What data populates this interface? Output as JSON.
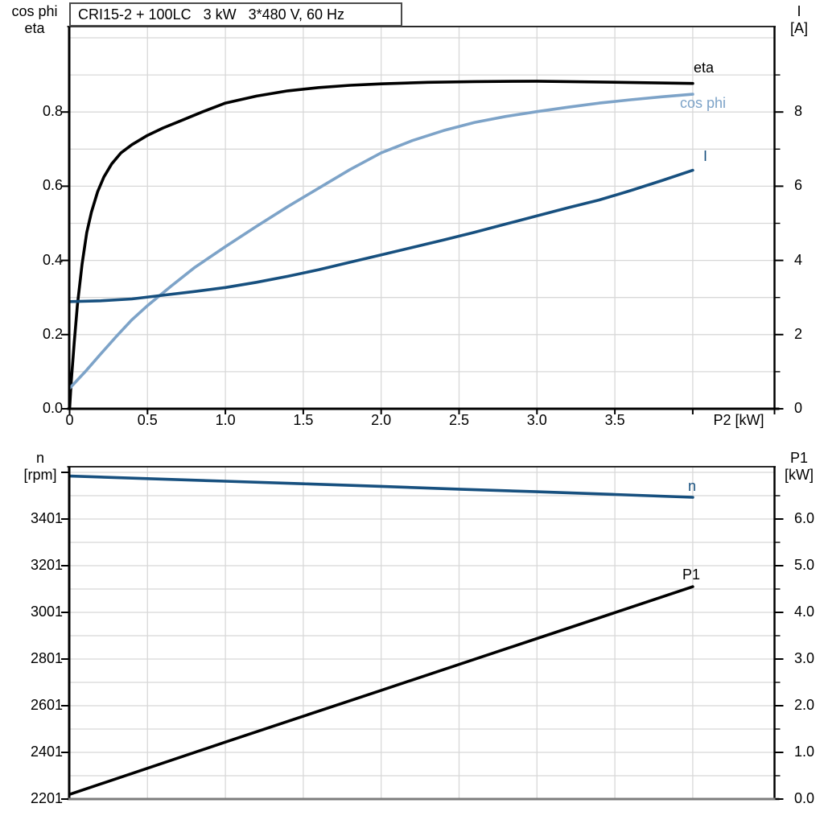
{
  "title_box": {
    "text": "CRI15-2 + 100LC   3 kW   3*480 V, 60 Hz"
  },
  "top_chart": {
    "left_axis_title": [
      "cos phi",
      "eta"
    ],
    "right_axis_title": [
      "I",
      "[A]"
    ],
    "x_axis_title": "P2 [kW]"
  },
  "bottom_chart": {
    "left_axis_title": [
      "n",
      "[rpm]"
    ],
    "right_axis_title": [
      "P1",
      "[kW]"
    ]
  },
  "colors": {
    "curve_black": "#000000",
    "curve_dark_blue": "#17507f",
    "curve_light_blue": "#7da3c8",
    "grid": "#d8d8d8",
    "axis": "#000000",
    "bottom_axis_gray": "#7d7d7d",
    "title_border": "#4a4a4a"
  },
  "chart_data": [
    {
      "type": "line",
      "title": "CRI15-2 + 100LC 3 kW 3*480 V, 60 Hz",
      "xlabel": "P2 [kW]",
      "ylabel_left": "cos phi / eta",
      "ylabel_right": "I [A]",
      "xlim": [
        0,
        4.53
      ],
      "ylim_left": [
        0,
        1.03
      ],
      "ylim_right": [
        0,
        10.3
      ],
      "grid": "on",
      "x_ticks": [
        0,
        0.5,
        1,
        1.5,
        2,
        2.5,
        3,
        3.5
      ],
      "x_tick_labels": [
        "0",
        "0.5",
        "1.0",
        "1.5",
        "2.0",
        "2.5",
        "3.0",
        "3.5"
      ],
      "y_ticks_left": [
        0,
        0.2,
        0.4,
        0.6,
        0.8
      ],
      "y_tick_labels_left": [
        "0.0",
        "0.2",
        "0.4",
        "0.6",
        "0.8"
      ],
      "y_ticks_right": [
        0,
        2,
        4,
        6,
        8
      ],
      "y_tick_labels_right": [
        "0",
        "2",
        "4",
        "6",
        "8"
      ],
      "series": [
        {
          "name": "eta",
          "axis": "left",
          "color": "#000000",
          "x": [
            0,
            0.01,
            0.03,
            0.05,
            0.08,
            0.11,
            0.14,
            0.18,
            0.22,
            0.27,
            0.33,
            0.4,
            0.5,
            0.6,
            0.7,
            0.85,
            1.0,
            1.2,
            1.4,
            1.6,
            1.8,
            2.0,
            2.3,
            2.6,
            3.0,
            3.4,
            3.7,
            4.0
          ],
          "y": [
            0,
            0.07,
            0.18,
            0.28,
            0.39,
            0.475,
            0.53,
            0.585,
            0.625,
            0.66,
            0.69,
            0.712,
            0.737,
            0.757,
            0.774,
            0.8,
            0.824,
            0.843,
            0.857,
            0.866,
            0.872,
            0.876,
            0.88,
            0.882,
            0.883,
            0.881,
            0.879,
            0.877
          ]
        },
        {
          "name": "cos phi",
          "axis": "left",
          "color": "#7da3c8",
          "x": [
            0,
            0.1,
            0.2,
            0.3,
            0.4,
            0.5,
            0.65,
            0.8,
            1.0,
            1.2,
            1.4,
            1.6,
            1.8,
            2.0,
            2.2,
            2.4,
            2.6,
            2.8,
            3.0,
            3.2,
            3.4,
            3.6,
            3.8,
            4.0
          ],
          "y": [
            0.055,
            0.1,
            0.148,
            0.195,
            0.24,
            0.278,
            0.33,
            0.38,
            0.437,
            0.492,
            0.545,
            0.595,
            0.645,
            0.69,
            0.723,
            0.75,
            0.772,
            0.788,
            0.801,
            0.813,
            0.824,
            0.833,
            0.841,
            0.848
          ]
        },
        {
          "name": "I",
          "axis": "right",
          "color": "#17507f",
          "x": [
            0,
            0.2,
            0.4,
            0.6,
            0.8,
            1.0,
            1.2,
            1.4,
            1.6,
            1.8,
            2.0,
            2.2,
            2.4,
            2.6,
            2.8,
            3.0,
            3.2,
            3.4,
            3.6,
            3.8,
            4.0
          ],
          "y": [
            2.89,
            2.91,
            2.96,
            3.06,
            3.16,
            3.27,
            3.41,
            3.57,
            3.75,
            3.95,
            4.15,
            4.35,
            4.55,
            4.76,
            4.98,
            5.2,
            5.42,
            5.63,
            5.88,
            6.15,
            6.43
          ]
        }
      ]
    },
    {
      "type": "line",
      "title": "",
      "xlabel": "",
      "ylabel_left": "n [rpm]",
      "ylabel_right": "P1 [kW]",
      "xlim": [
        0,
        4.53
      ],
      "ylim_left": [
        2201,
        3630
      ],
      "ylim_right": [
        0,
        7.15
      ],
      "grid": "on",
      "x_ticks": [],
      "x_tick_labels": [],
      "y_ticks_left": [
        2201,
        2401,
        2601,
        2801,
        3001,
        3201,
        3401
      ],
      "y_tick_labels_left": [
        "2201",
        "2401",
        "2601",
        "2801",
        "3001",
        "3201",
        "3401"
      ],
      "y_ticks_right": [
        0,
        1,
        2,
        3,
        4,
        5,
        6
      ],
      "y_tick_labels_right": [
        "0.0",
        "1.0",
        "2.0",
        "3.0",
        "4.0",
        "5.0",
        "6.0"
      ],
      "series": [
        {
          "name": "n",
          "axis": "left",
          "color": "#17507f",
          "x": [
            0,
            0.5,
            1,
            1.5,
            2,
            2.5,
            3,
            3.5,
            4
          ],
          "y": [
            3585,
            3574,
            3563,
            3552,
            3541,
            3529,
            3518,
            3506,
            3494
          ]
        },
        {
          "name": "P1",
          "axis": "right",
          "color": "#000000",
          "x": [
            0,
            1,
            2,
            3,
            4
          ],
          "y": [
            0.1,
            1.22,
            2.33,
            3.44,
            4.55
          ]
        }
      ]
    }
  ]
}
